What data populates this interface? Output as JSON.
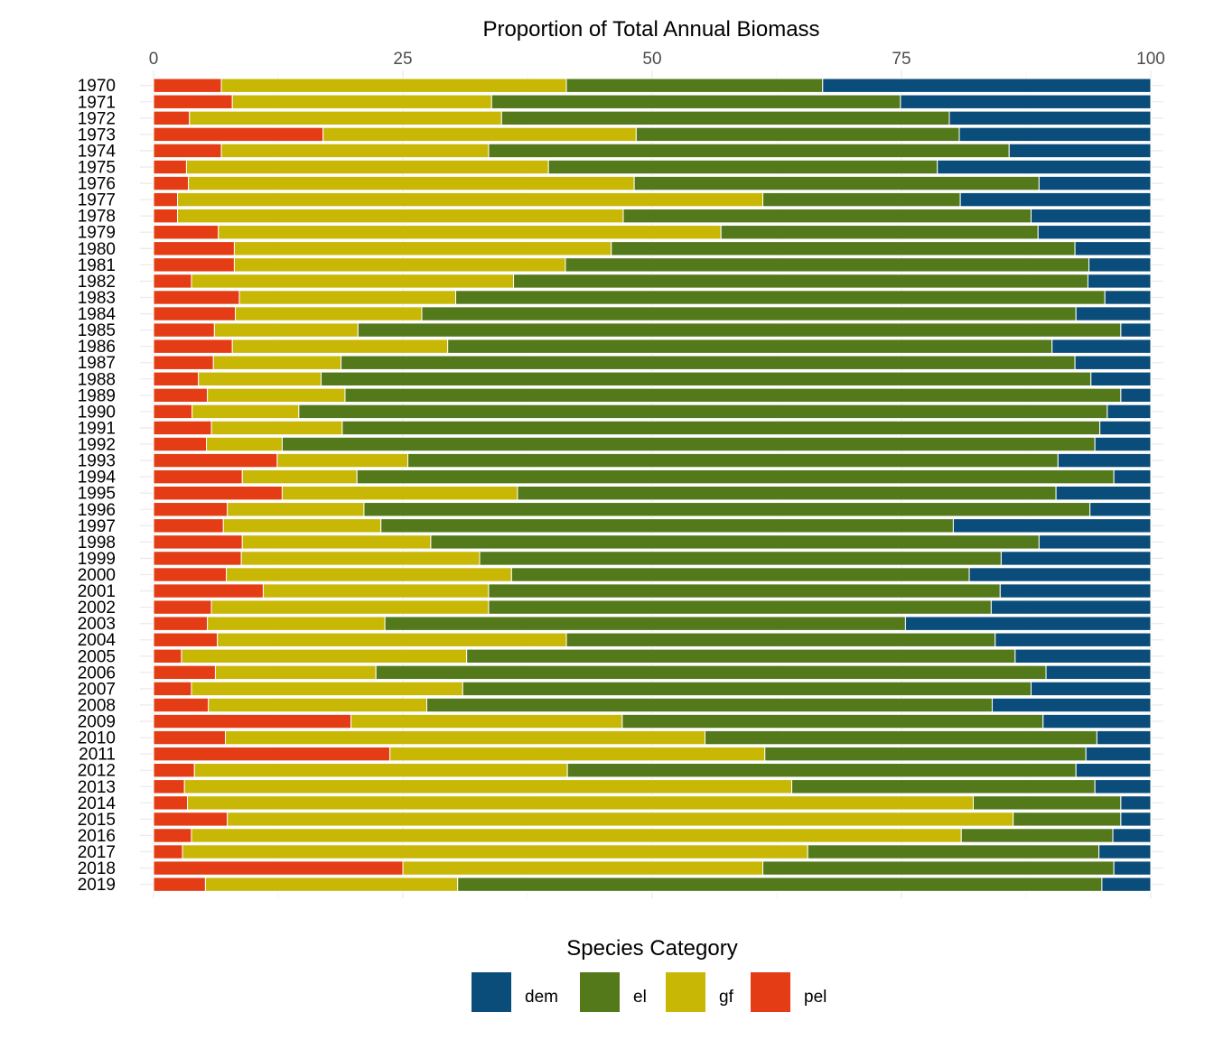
{
  "chart_data": {
    "type": "bar",
    "orientation": "horizontal",
    "stacked": true,
    "title": "",
    "xlabel": "Proportion of Total Annual Biomass",
    "xlabel_position": "top",
    "ylabel": "",
    "xlim": [
      0,
      100
    ],
    "x_ticks": [
      0,
      25,
      50,
      75,
      100
    ],
    "grid": true,
    "legend": {
      "title": "Species Category",
      "placement": "bottom",
      "entries": [
        "dem",
        "el",
        "gf",
        "pel"
      ]
    },
    "colors": {
      "dem": "#0a4d7a",
      "el": "#53791b",
      "gf": "#c9b705",
      "pel": "#e43c14"
    },
    "categories": [
      "1970",
      "1971",
      "1972",
      "1973",
      "1974",
      "1975",
      "1976",
      "1977",
      "1978",
      "1979",
      "1980",
      "1981",
      "1982",
      "1983",
      "1984",
      "1985",
      "1986",
      "1987",
      "1988",
      "1989",
      "1990",
      "1991",
      "1992",
      "1993",
      "1994",
      "1995",
      "1996",
      "1997",
      "1998",
      "1999",
      "2000",
      "2001",
      "2002",
      "2003",
      "2004",
      "2005",
      "2006",
      "2007",
      "2008",
      "2009",
      "2010",
      "2011",
      "2012",
      "2013",
      "2014",
      "2015",
      "2016",
      "2017",
      "2018",
      "2019"
    ],
    "stack_order": [
      "pel",
      "gf",
      "el",
      "dem"
    ],
    "series": [
      {
        "name": "pel",
        "values": [
          6.8,
          7.9,
          3.6,
          17.0,
          6.8,
          3.3,
          3.5,
          2.4,
          2.4,
          6.5,
          8.1,
          8.1,
          3.8,
          8.6,
          8.2,
          6.1,
          7.9,
          6.0,
          4.5,
          5.4,
          3.9,
          5.8,
          5.3,
          12.4,
          8.9,
          12.9,
          7.4,
          7.0,
          8.9,
          8.8,
          7.3,
          11.0,
          5.8,
          5.4,
          6.4,
          2.8,
          6.2,
          3.8,
          5.5,
          19.8,
          7.2,
          23.7,
          4.1,
          3.1,
          3.4,
          7.4,
          3.8,
          2.9,
          25.0,
          5.2
        ]
      },
      {
        "name": "gf",
        "values": [
          34.6,
          26.0,
          31.3,
          31.4,
          26.8,
          36.3,
          44.7,
          58.7,
          44.7,
          50.4,
          37.8,
          33.2,
          32.3,
          21.7,
          18.7,
          14.4,
          21.6,
          12.8,
          12.3,
          13.8,
          10.8,
          13.1,
          7.6,
          13.1,
          11.5,
          23.6,
          13.7,
          15.8,
          18.9,
          23.9,
          28.6,
          22.6,
          27.8,
          17.8,
          35.0,
          28.6,
          16.1,
          27.2,
          21.9,
          27.2,
          48.1,
          37.6,
          37.4,
          60.9,
          78.8,
          78.8,
          77.2,
          62.7,
          36.1,
          25.3
        ]
      },
      {
        "name": "el",
        "values": [
          25.7,
          41.0,
          44.9,
          32.4,
          52.2,
          39.0,
          40.6,
          19.8,
          40.9,
          31.8,
          46.5,
          52.5,
          57.6,
          65.1,
          65.6,
          76.5,
          60.6,
          73.6,
          77.2,
          77.8,
          81.8,
          75.9,
          81.5,
          65.2,
          75.9,
          54.0,
          72.8,
          57.4,
          61.0,
          52.3,
          45.9,
          51.3,
          50.4,
          52.2,
          43.0,
          55.0,
          67.2,
          57.0,
          56.7,
          42.2,
          39.3,
          32.2,
          51.0,
          30.4,
          14.8,
          10.8,
          15.2,
          29.2,
          35.2,
          64.6
        ]
      },
      {
        "name": "dem",
        "values": [
          32.9,
          25.1,
          20.2,
          19.2,
          14.2,
          21.4,
          11.2,
          19.1,
          12.0,
          11.3,
          7.6,
          6.2,
          6.3,
          4.6,
          7.5,
          3.0,
          9.9,
          7.6,
          6.0,
          3.0,
          4.4,
          5.1,
          5.6,
          9.3,
          3.7,
          9.5,
          6.1,
          19.8,
          11.2,
          15.0,
          18.2,
          15.1,
          16.0,
          24.6,
          15.6,
          13.6,
          10.5,
          12.0,
          15.9,
          10.8,
          5.4,
          6.5,
          7.5,
          5.6,
          3.0,
          3.0,
          3.8,
          5.2,
          3.7,
          4.9
        ]
      }
    ]
  }
}
